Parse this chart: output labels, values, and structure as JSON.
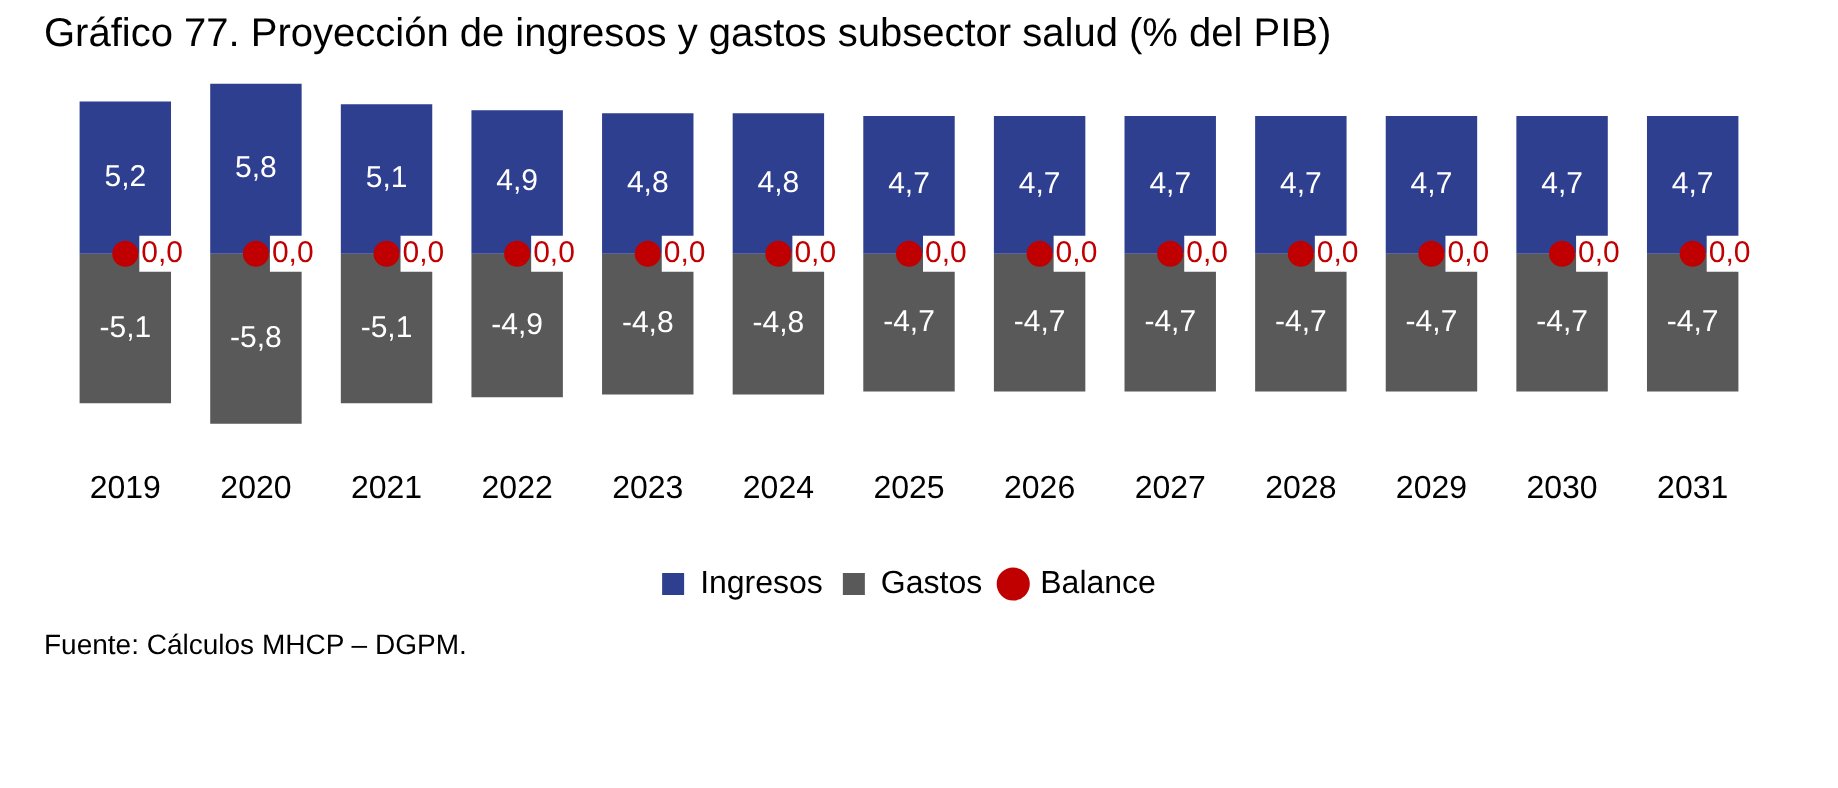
{
  "chart_data": {
    "type": "bar",
    "title": "Gráfico 77. Proyección de ingresos y gastos subsector salud (% del PIB)",
    "categories": [
      "2019",
      "2020",
      "2021",
      "2022",
      "2023",
      "2024",
      "2025",
      "2026",
      "2027",
      "2028",
      "2029",
      "2030",
      "2031"
    ],
    "stacked": true,
    "tick_labels": "x",
    "grid": false,
    "legend": "bottom",
    "series": [
      {
        "name": "Ingresos",
        "color": "#2f3f8f",
        "values": [
          5.2,
          5.8,
          5.1,
          4.9,
          4.8,
          4.8,
          4.7,
          4.7,
          4.7,
          4.7,
          4.7,
          4.7,
          4.7
        ],
        "value_labels": [
          "5,2",
          "5,8",
          "5,1",
          "4,9",
          "4,8",
          "4,8",
          "4,7",
          "4,7",
          "4,7",
          "4,7",
          "4,7",
          "4,7",
          "4,7"
        ]
      },
      {
        "name": "Gastos",
        "color": "#595959",
        "values": [
          -5.1,
          -5.8,
          -5.1,
          -4.9,
          -4.8,
          -4.8,
          -4.7,
          -4.7,
          -4.7,
          -4.7,
          -4.7,
          -4.7,
          -4.7
        ],
        "value_labels": [
          "-5,1",
          "-5,8",
          "-5,1",
          "-4,9",
          "-4,8",
          "-4,8",
          "-4,7",
          "-4,7",
          "-4,7",
          "-4,7",
          "-4,7",
          "-4,7",
          "-4,7"
        ]
      },
      {
        "name": "Balance",
        "type": "scatter",
        "marker": "circle",
        "color": "#c00000",
        "values": [
          0,
          0,
          0,
          0,
          0,
          0,
          0,
          0,
          0,
          0,
          0,
          0,
          0
        ],
        "value_labels": [
          "0,0",
          "0,0",
          "0,0",
          "0,0",
          "0,0",
          "0,0",
          "0,0",
          "0,0",
          "0,0",
          "0,0",
          "0,0",
          "0,0",
          "0,0"
        ]
      }
    ],
    "annotations": [
      "Fuente: Cálculos MHCP – DGPM."
    ]
  }
}
